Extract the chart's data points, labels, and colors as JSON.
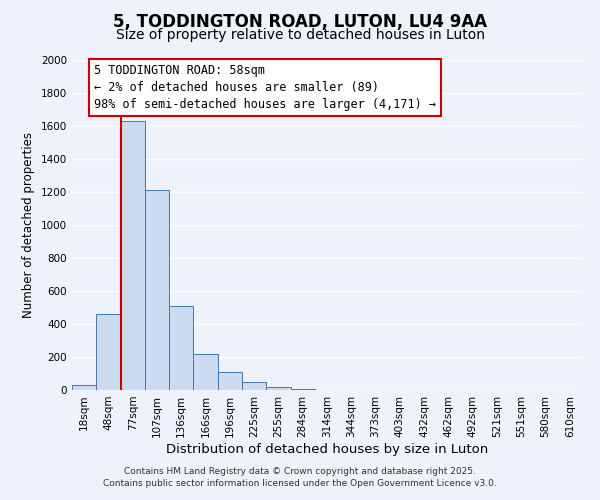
{
  "title": "5, TODDINGTON ROAD, LUTON, LU4 9AA",
  "subtitle": "Size of property relative to detached houses in Luton",
  "xlabel": "Distribution of detached houses by size in Luton",
  "ylabel": "Number of detached properties",
  "categories": [
    "18sqm",
    "48sqm",
    "77sqm",
    "107sqm",
    "136sqm",
    "166sqm",
    "196sqm",
    "225sqm",
    "255sqm",
    "284sqm",
    "314sqm",
    "344sqm",
    "373sqm",
    "403sqm",
    "432sqm",
    "462sqm",
    "492sqm",
    "521sqm",
    "551sqm",
    "580sqm",
    "610sqm"
  ],
  "values": [
    30,
    460,
    1630,
    1210,
    510,
    220,
    110,
    50,
    20,
    5,
    0,
    0,
    0,
    0,
    0,
    0,
    0,
    0,
    0,
    0,
    0
  ],
  "bar_color": "#ccdaf0",
  "bar_edge_color": "#4477aa",
  "bar_width": 1.0,
  "ylim": [
    0,
    2000
  ],
  "yticks": [
    0,
    200,
    400,
    600,
    800,
    1000,
    1200,
    1400,
    1600,
    1800,
    2000
  ],
  "vline_color": "#cc0000",
  "annotation_text_line1": "5 TODDINGTON ROAD: 58sqm",
  "annotation_text_line2": "← 2% of detached houses are smaller (89)",
  "annotation_text_line3": "98% of semi-detached houses are larger (4,171) →",
  "annotation_box_color": "#ffffff",
  "annotation_border_color": "#cc0000",
  "background_color": "#eef2fa",
  "grid_color": "#ffffff",
  "footer_line1": "Contains HM Land Registry data © Crown copyright and database right 2025.",
  "footer_line2": "Contains public sector information licensed under the Open Government Licence v3.0.",
  "title_fontsize": 12,
  "subtitle_fontsize": 10,
  "xlabel_fontsize": 9.5,
  "ylabel_fontsize": 8.5,
  "tick_fontsize": 7.5,
  "annotation_fontsize": 8.5,
  "footer_fontsize": 6.5
}
